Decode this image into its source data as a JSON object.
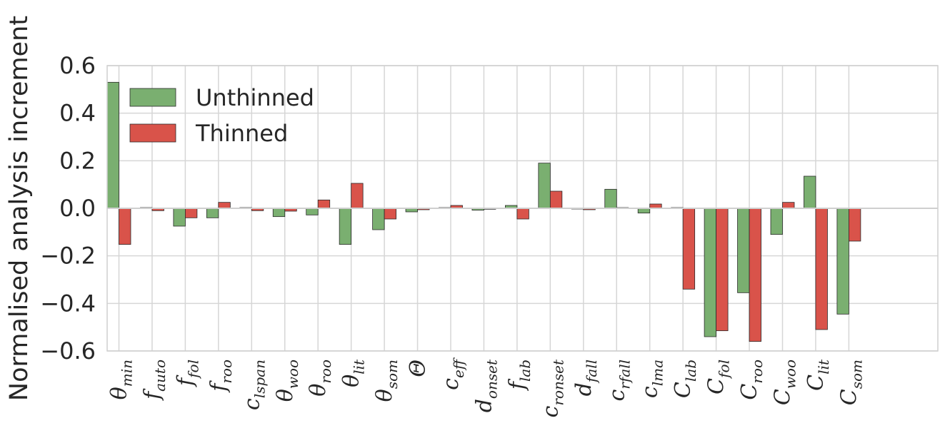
{
  "chart_data": {
    "type": "bar",
    "ylabel": "Normalised analysis increment",
    "xlabel": "",
    "ylim": [
      -0.6,
      0.6
    ],
    "yticks": [
      "0.6",
      "0.4",
      "0.2",
      "0.0",
      "−0.2",
      "−0.4",
      "−0.6"
    ],
    "ytick_values": [
      0.6,
      0.4,
      0.2,
      0.0,
      -0.2,
      -0.4,
      -0.6
    ],
    "grid": true,
    "legend_position": "top-left",
    "categories": [
      {
        "base": "θ",
        "sub": "min"
      },
      {
        "base": "f",
        "sub": "auto"
      },
      {
        "base": "f",
        "sub": "fol"
      },
      {
        "base": "f",
        "sub": "roo"
      },
      {
        "base": "c",
        "sub": "lspan"
      },
      {
        "base": "θ",
        "sub": "woo"
      },
      {
        "base": "θ",
        "sub": "roo"
      },
      {
        "base": "θ",
        "sub": "lit"
      },
      {
        "base": "θ",
        "sub": "som"
      },
      {
        "base": "Θ",
        "sub": ""
      },
      {
        "base": "c",
        "sub": "eff"
      },
      {
        "base": "d",
        "sub": "onset"
      },
      {
        "base": "f",
        "sub": "lab"
      },
      {
        "base": "c",
        "sub": "ronset"
      },
      {
        "base": "d",
        "sub": "fall"
      },
      {
        "base": "c",
        "sub": "rfall"
      },
      {
        "base": "c",
        "sub": "lma"
      },
      {
        "base": "C",
        "sub": "lab"
      },
      {
        "base": "C",
        "sub": "fol"
      },
      {
        "base": "C",
        "sub": "roo"
      },
      {
        "base": "C",
        "sub": "woo"
      },
      {
        "base": "C",
        "sub": "lit"
      },
      {
        "base": "C",
        "sub": "som"
      }
    ],
    "series": [
      {
        "name": "Unthinned",
        "color": "#7aaf70",
        "values": [
          0.53,
          0.003,
          -0.075,
          -0.04,
          0.003,
          -0.035,
          -0.028,
          -0.152,
          -0.09,
          -0.015,
          0.003,
          -0.008,
          0.012,
          0.19,
          -0.003,
          0.08,
          -0.02,
          0.003,
          -0.54,
          -0.355,
          -0.11,
          0.135,
          -0.445
        ]
      },
      {
        "name": "Thinned",
        "color": "#d9534a",
        "values": [
          -0.152,
          -0.01,
          -0.04,
          0.025,
          -0.01,
          -0.012,
          0.035,
          0.105,
          -0.045,
          -0.006,
          0.012,
          -0.004,
          -0.045,
          0.072,
          -0.006,
          0.003,
          0.018,
          -0.34,
          -0.515,
          -0.56,
          0.025,
          -0.51,
          -0.138
        ]
      }
    ]
  }
}
